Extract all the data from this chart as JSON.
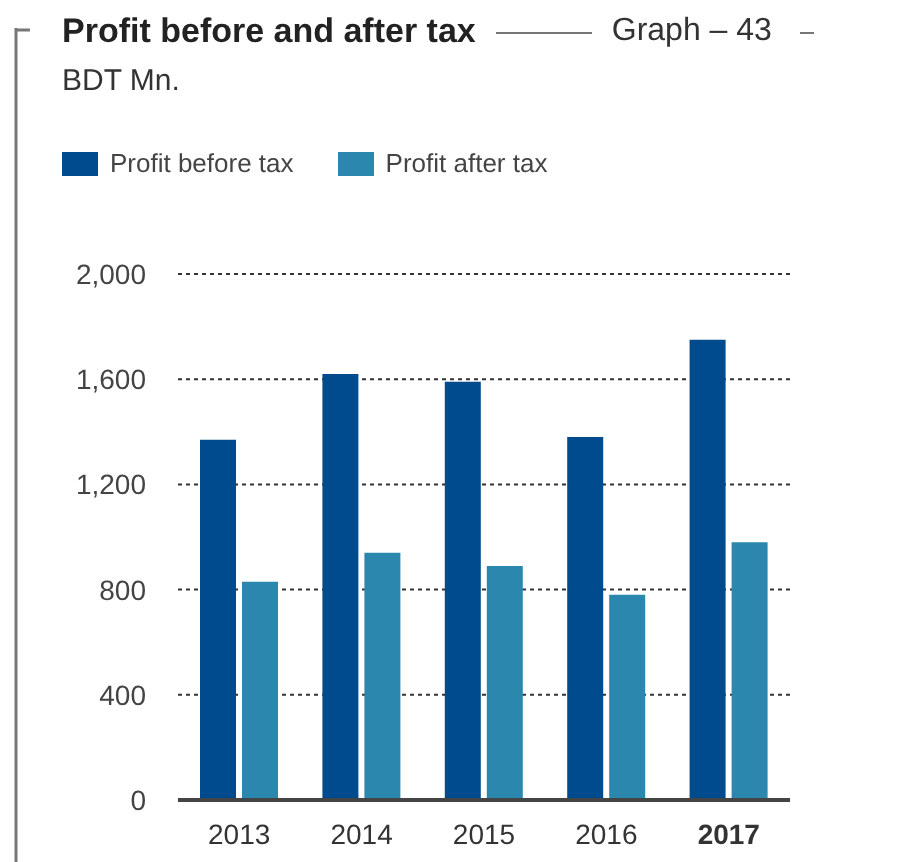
{
  "chart_data": {
    "type": "bar",
    "title": "Profit before and after tax",
    "subtitle": "BDT Mn.",
    "annotations": [
      "Graph – 43"
    ],
    "categories": [
      "2013",
      "2014",
      "2015",
      "2016",
      "2017"
    ],
    "series": [
      {
        "name": "Profit before tax",
        "color": "#004b8d",
        "values": [
          1370,
          1620,
          1590,
          1380,
          1750
        ]
      },
      {
        "name": "Profit after tax",
        "color": "#2b87ad",
        "values": [
          830,
          940,
          890,
          780,
          980
        ]
      }
    ],
    "ylim": [
      0,
      2000
    ],
    "yticks": [
      0,
      400,
      800,
      {
        "value": 1200,
        "label": "1,200"
      },
      {
        "value": 1600,
        "label": "1,600"
      },
      {
        "value": 2000,
        "label": "2,000"
      }
    ],
    "grid": "y",
    "legend": "top left"
  }
}
